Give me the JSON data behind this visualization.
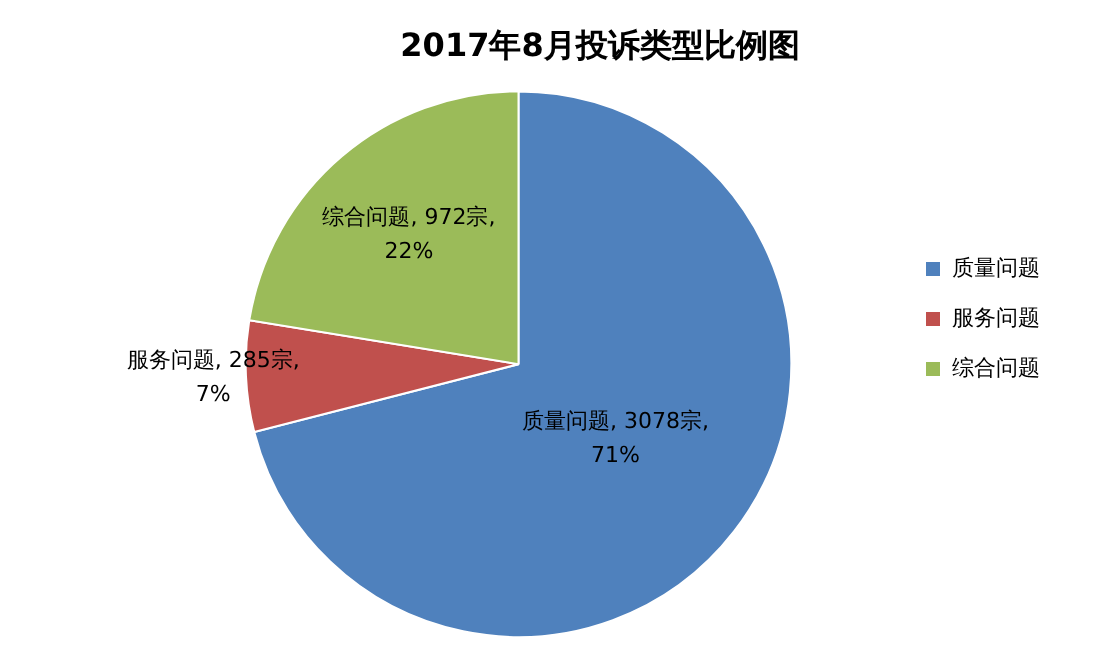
{
  "chart_data": {
    "type": "pie",
    "title": "2017年8月投诉类型比例图",
    "categories": [
      "质量问题",
      "服务问题",
      "综合问题"
    ],
    "values": [
      3078,
      285,
      972
    ],
    "value_labels": [
      "质量问题, 3078宗, 71%",
      "服务问题, 285宗, 7%",
      "综合问题, 972宗, 22%"
    ],
    "colors": [
      "#4f81bd",
      "#c0504d",
      "#9bbb59"
    ],
    "legend": "right"
  }
}
